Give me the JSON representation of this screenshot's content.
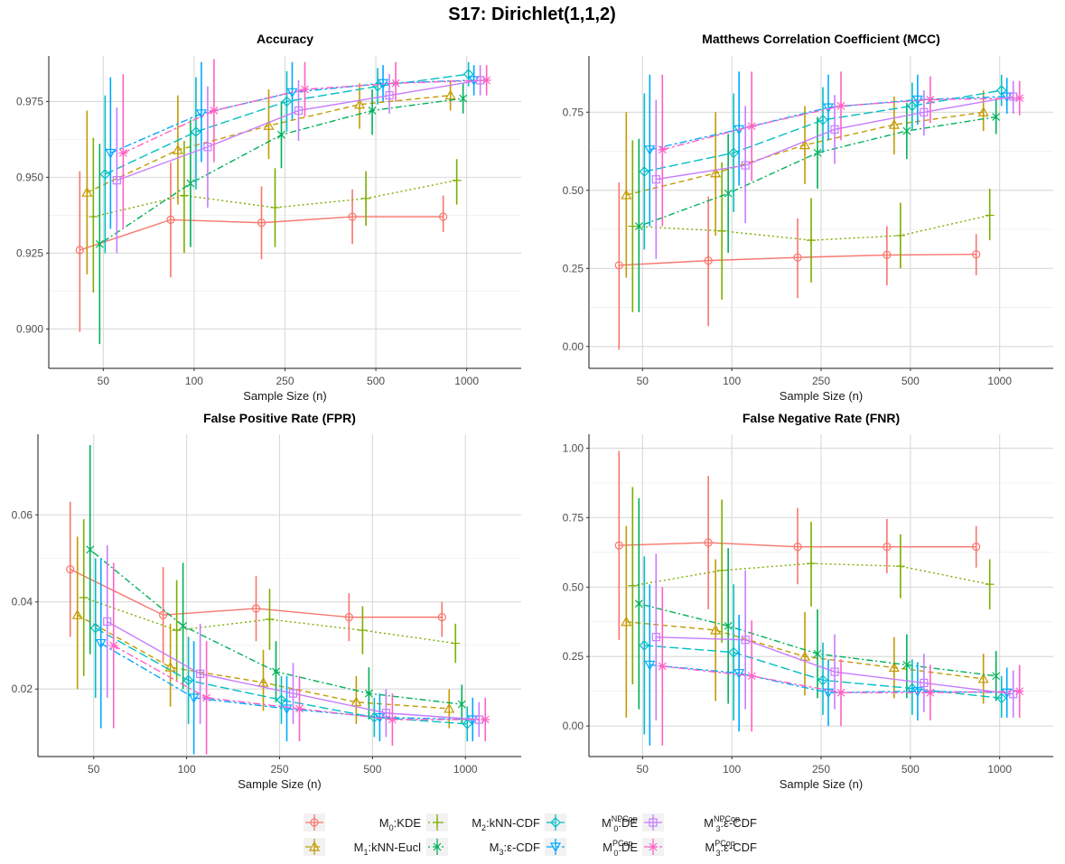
{
  "figure_title": "S17: Dirichlet(1,1,2)",
  "legend": [
    {
      "id": "M0KDE",
      "pre": "M",
      "sub": "0",
      "sup": "",
      "post": ":KDE",
      "color": "#F8766D",
      "marker": "circle",
      "dash": "solid"
    },
    {
      "id": "M1kNN",
      "pre": "M",
      "sub": "1",
      "sup": "",
      "post": ":kNN-Eucl",
      "color": "#C49A00",
      "marker": "triangle",
      "dash": "dashed"
    },
    {
      "id": "M2kNN",
      "pre": "M",
      "sub": "2",
      "sup": "",
      "post": ":kNN-CDF",
      "color": "#7CAE00",
      "marker": "plus",
      "dash": "dotted"
    },
    {
      "id": "M3eps",
      "pre": "M",
      "sub": "3",
      "sup": "",
      "post": ":ε-CDF",
      "color": "#00B159",
      "marker": "cross",
      "dash": "dotdash"
    },
    {
      "id": "M0NP",
      "pre": "M",
      "sub": "0",
      "sup": "NPCop",
      "post": ":DE",
      "color": "#00BFC4",
      "marker": "diamond",
      "dash": "longdash"
    },
    {
      "id": "M0P",
      "pre": "M",
      "sub": "0",
      "sup": "PCop",
      "post": ":DE",
      "color": "#00A9FF",
      "marker": "triangle-down",
      "dash": "twodash"
    },
    {
      "id": "M3NP",
      "pre": "M",
      "sub": "3",
      "sup": "NPCop",
      "post": ":ε-CDF",
      "color": "#C77CFF",
      "marker": "square",
      "dash": "solid"
    },
    {
      "id": "M3P",
      "pre": "M",
      "sub": "3",
      "sup": "PCop",
      "post": ":ε-CDF",
      "color": "#FF61C3",
      "marker": "asterisk",
      "dash": "twodash"
    }
  ],
  "chart_data": [
    {
      "type": "line",
      "title": "Accuracy",
      "xlabel": "Sample Size (n)",
      "ylabel": "",
      "categories": [
        "50",
        "100",
        "250",
        "500",
        "1000"
      ],
      "ylim": [
        0.887,
        0.99
      ],
      "yticks": [
        0.9,
        0.925,
        0.95,
        0.975
      ],
      "ytick_labels": [
        "0.900",
        "0.925",
        "0.950",
        "0.975"
      ],
      "series": [
        {
          "id": "M0KDE",
          "values": [
            0.926,
            0.936,
            0.935,
            0.937,
            0.937
          ],
          "lo": [
            0.899,
            0.917,
            0.923,
            0.928,
            0.932
          ],
          "hi": [
            0.952,
            0.955,
            0.947,
            0.946,
            0.944
          ]
        },
        {
          "id": "M1kNN",
          "values": [
            0.945,
            0.959,
            0.967,
            0.974,
            0.977
          ],
          "lo": [
            0.918,
            0.941,
            0.956,
            0.966,
            0.972
          ],
          "hi": [
            0.972,
            0.977,
            0.979,
            0.981,
            0.982
          ]
        },
        {
          "id": "M2kNN",
          "values": [
            0.937,
            0.944,
            0.94,
            0.943,
            0.949
          ],
          "lo": [
            0.912,
            0.925,
            0.927,
            0.934,
            0.941
          ],
          "hi": [
            0.963,
            0.962,
            0.953,
            0.952,
            0.956
          ]
        },
        {
          "id": "M3eps",
          "values": [
            0.928,
            0.948,
            0.964,
            0.972,
            0.976
          ],
          "lo": [
            0.895,
            0.927,
            0.953,
            0.964,
            0.971
          ],
          "hi": [
            0.961,
            0.969,
            0.975,
            0.979,
            0.981
          ]
        },
        {
          "id": "M0NP",
          "values": [
            0.951,
            0.965,
            0.975,
            0.98,
            0.984
          ],
          "lo": [
            0.925,
            0.946,
            0.965,
            0.974,
            0.98
          ],
          "hi": [
            0.977,
            0.983,
            0.985,
            0.986,
            0.988
          ]
        },
        {
          "id": "M0P",
          "values": [
            0.958,
            0.971,
            0.978,
            0.981,
            0.982
          ],
          "lo": [
            0.933,
            0.955,
            0.969,
            0.975,
            0.977
          ],
          "hi": [
            0.983,
            0.988,
            0.988,
            0.987,
            0.987
          ]
        },
        {
          "id": "M3NP",
          "values": [
            0.949,
            0.96,
            0.972,
            0.977,
            0.982
          ],
          "lo": [
            0.925,
            0.94,
            0.962,
            0.971,
            0.977
          ],
          "hi": [
            0.973,
            0.98,
            0.982,
            0.984,
            0.987
          ]
        },
        {
          "id": "M3P",
          "values": [
            0.958,
            0.972,
            0.979,
            0.981,
            0.982
          ],
          "lo": [
            0.933,
            0.955,
            0.97,
            0.975,
            0.977
          ],
          "hi": [
            0.984,
            0.989,
            0.988,
            0.988,
            0.987
          ]
        }
      ]
    },
    {
      "type": "line",
      "title": "Matthews Correlation Coefficient (MCC)",
      "xlabel": "Sample Size (n)",
      "ylabel": "",
      "categories": [
        "50",
        "100",
        "250",
        "500",
        "1000"
      ],
      "ylim": [
        -0.07,
        0.93
      ],
      "yticks": [
        0.0,
        0.25,
        0.5,
        0.75
      ],
      "ytick_labels": [
        "0.00",
        "0.25",
        "0.50",
        "0.75"
      ],
      "series": [
        {
          "id": "M0KDE",
          "values": [
            0.26,
            0.275,
            0.285,
            0.293,
            0.295
          ],
          "lo": [
            -0.01,
            0.065,
            0.155,
            0.195,
            0.228
          ],
          "hi": [
            0.525,
            0.48,
            0.41,
            0.385,
            0.36
          ]
        },
        {
          "id": "M1kNN",
          "values": [
            0.485,
            0.555,
            0.645,
            0.71,
            0.75
          ],
          "lo": [
            0.22,
            0.355,
            0.52,
            0.615,
            0.69
          ],
          "hi": [
            0.75,
            0.75,
            0.77,
            0.8,
            0.82
          ]
        },
        {
          "id": "M2kNN",
          "values": [
            0.385,
            0.37,
            0.34,
            0.355,
            0.42
          ],
          "lo": [
            0.11,
            0.15,
            0.205,
            0.25,
            0.34
          ],
          "hi": [
            0.66,
            0.59,
            0.475,
            0.46,
            0.505
          ]
        },
        {
          "id": "M3eps",
          "values": [
            0.385,
            0.49,
            0.62,
            0.69,
            0.735
          ],
          "lo": [
            0.11,
            0.3,
            0.505,
            0.6,
            0.68
          ],
          "hi": [
            0.665,
            0.68,
            0.735,
            0.78,
            0.79
          ]
        },
        {
          "id": "M0NP",
          "values": [
            0.56,
            0.62,
            0.725,
            0.77,
            0.82
          ],
          "lo": [
            0.31,
            0.43,
            0.62,
            0.695,
            0.77
          ],
          "hi": [
            0.81,
            0.81,
            0.83,
            0.845,
            0.87
          ]
        },
        {
          "id": "M0P",
          "values": [
            0.63,
            0.695,
            0.765,
            0.79,
            0.8
          ],
          "lo": [
            0.385,
            0.515,
            0.66,
            0.71,
            0.745
          ],
          "hi": [
            0.87,
            0.88,
            0.87,
            0.87,
            0.86
          ]
        },
        {
          "id": "M3NP",
          "values": [
            0.535,
            0.58,
            0.695,
            0.75,
            0.8
          ],
          "lo": [
            0.28,
            0.395,
            0.585,
            0.675,
            0.745
          ],
          "hi": [
            0.79,
            0.77,
            0.805,
            0.82,
            0.85
          ]
        },
        {
          "id": "M3P",
          "values": [
            0.63,
            0.705,
            0.77,
            0.79,
            0.795
          ],
          "lo": [
            0.385,
            0.53,
            0.66,
            0.715,
            0.74
          ],
          "hi": [
            0.87,
            0.88,
            0.88,
            0.865,
            0.85
          ]
        }
      ]
    },
    {
      "type": "line",
      "title": "False Positive Rate (FPR)",
      "xlabel": "Sample Size (n)",
      "ylabel": "",
      "categories": [
        "50",
        "100",
        "250",
        "500",
        "1000"
      ],
      "ylim": [
        0.0045,
        0.0785
      ],
      "yticks": [
        0.02,
        0.04,
        0.06
      ],
      "ytick_labels": [
        "0.02",
        "0.04",
        "0.06"
      ],
      "series": [
        {
          "id": "M0KDE",
          "values": [
            0.0475,
            0.037,
            0.0385,
            0.0365,
            0.0365
          ],
          "lo": [
            0.032,
            0.026,
            0.031,
            0.031,
            0.032
          ],
          "hi": [
            0.063,
            0.048,
            0.046,
            0.042,
            0.04
          ]
        },
        {
          "id": "M1kNN",
          "values": [
            0.037,
            0.025,
            0.0215,
            0.017,
            0.0155
          ],
          "lo": [
            0.02,
            0.016,
            0.015,
            0.012,
            0.011
          ],
          "hi": [
            0.055,
            0.035,
            0.029,
            0.023,
            0.02
          ]
        },
        {
          "id": "M2kNN",
          "values": [
            0.041,
            0.0335,
            0.036,
            0.0335,
            0.0305
          ],
          "lo": [
            0.023,
            0.022,
            0.029,
            0.028,
            0.026
          ],
          "hi": [
            0.059,
            0.045,
            0.043,
            0.039,
            0.035
          ]
        },
        {
          "id": "M3eps",
          "values": [
            0.052,
            0.0345,
            0.024,
            0.019,
            0.0165
          ],
          "lo": [
            0.028,
            0.02,
            0.017,
            0.013,
            0.012
          ],
          "hi": [
            0.076,
            0.049,
            0.031,
            0.025,
            0.021
          ]
        },
        {
          "id": "M0NP",
          "values": [
            0.034,
            0.022,
            0.0175,
            0.0135,
            0.012
          ],
          "lo": [
            0.018,
            0.012,
            0.012,
            0.009,
            0.008
          ],
          "hi": [
            0.05,
            0.032,
            0.023,
            0.018,
            0.016
          ]
        },
        {
          "id": "M0P",
          "values": [
            0.0305,
            0.018,
            0.0155,
            0.0135,
            0.013
          ],
          "lo": [
            0.011,
            0.005,
            0.008,
            0.008,
            0.008
          ],
          "hi": [
            0.05,
            0.031,
            0.023,
            0.019,
            0.018
          ]
        },
        {
          "id": "M3NP",
          "values": [
            0.0355,
            0.0235,
            0.019,
            0.0145,
            0.013
          ],
          "lo": [
            0.018,
            0.012,
            0.012,
            0.009,
            0.009
          ],
          "hi": [
            0.053,
            0.035,
            0.026,
            0.02,
            0.017
          ]
        },
        {
          "id": "M3P",
          "values": [
            0.03,
            0.018,
            0.0155,
            0.013,
            0.013
          ],
          "lo": [
            0.011,
            0.005,
            0.008,
            0.007,
            0.008
          ],
          "hi": [
            0.049,
            0.031,
            0.023,
            0.019,
            0.018
          ]
        }
      ]
    },
    {
      "type": "line",
      "title": "False Negative Rate (FNR)",
      "xlabel": "Sample Size (n)",
      "ylabel": "",
      "categories": [
        "50",
        "100",
        "250",
        "500",
        "1000"
      ],
      "ylim": [
        -0.11,
        1.05
      ],
      "yticks": [
        0.0,
        0.25,
        0.5,
        0.75,
        1.0
      ],
      "ytick_labels": [
        "0.00",
        "0.25",
        "0.50",
        "0.75",
        "1.00"
      ],
      "series": [
        {
          "id": "M0KDE",
          "values": [
            0.65,
            0.66,
            0.645,
            0.645,
            0.645
          ],
          "lo": [
            0.31,
            0.42,
            0.51,
            0.55,
            0.57
          ],
          "hi": [
            0.99,
            0.9,
            0.785,
            0.745,
            0.72
          ]
        },
        {
          "id": "M1kNN",
          "values": [
            0.375,
            0.345,
            0.25,
            0.21,
            0.17
          ],
          "lo": [
            0.03,
            0.09,
            0.11,
            0.1,
            0.08
          ],
          "hi": [
            0.72,
            0.6,
            0.41,
            0.32,
            0.26
          ]
        },
        {
          "id": "M2kNN",
          "values": [
            0.505,
            0.56,
            0.585,
            0.575,
            0.51
          ],
          "lo": [
            0.15,
            0.3,
            0.43,
            0.46,
            0.42
          ],
          "hi": [
            0.86,
            0.815,
            0.735,
            0.69,
            0.6
          ]
        },
        {
          "id": "M3eps",
          "values": [
            0.44,
            0.36,
            0.26,
            0.22,
            0.18
          ],
          "lo": [
            0.06,
            0.08,
            0.1,
            0.1,
            0.09
          ],
          "hi": [
            0.82,
            0.64,
            0.42,
            0.33,
            0.27
          ]
        },
        {
          "id": "M0NP",
          "values": [
            0.29,
            0.265,
            0.165,
            0.135,
            0.1
          ],
          "lo": [
            -0.03,
            0.02,
            0.04,
            0.04,
            0.03
          ],
          "hi": [
            0.61,
            0.51,
            0.3,
            0.24,
            0.18
          ]
        },
        {
          "id": "M0P",
          "values": [
            0.22,
            0.19,
            0.12,
            0.125,
            0.12
          ],
          "lo": [
            -0.07,
            -0.02,
            0.0,
            0.02,
            0.03
          ],
          "hi": [
            0.51,
            0.4,
            0.24,
            0.23,
            0.21
          ]
        },
        {
          "id": "M3NP",
          "values": [
            0.32,
            0.31,
            0.195,
            0.155,
            0.115
          ],
          "lo": [
            0.02,
            0.06,
            0.06,
            0.05,
            0.03
          ],
          "hi": [
            0.62,
            0.56,
            0.33,
            0.26,
            0.2
          ]
        },
        {
          "id": "M3P",
          "values": [
            0.215,
            0.18,
            0.12,
            0.12,
            0.125
          ],
          "lo": [
            -0.07,
            -0.02,
            0.0,
            0.02,
            0.03
          ],
          "hi": [
            0.5,
            0.38,
            0.24,
            0.22,
            0.22
          ]
        }
      ]
    }
  ]
}
